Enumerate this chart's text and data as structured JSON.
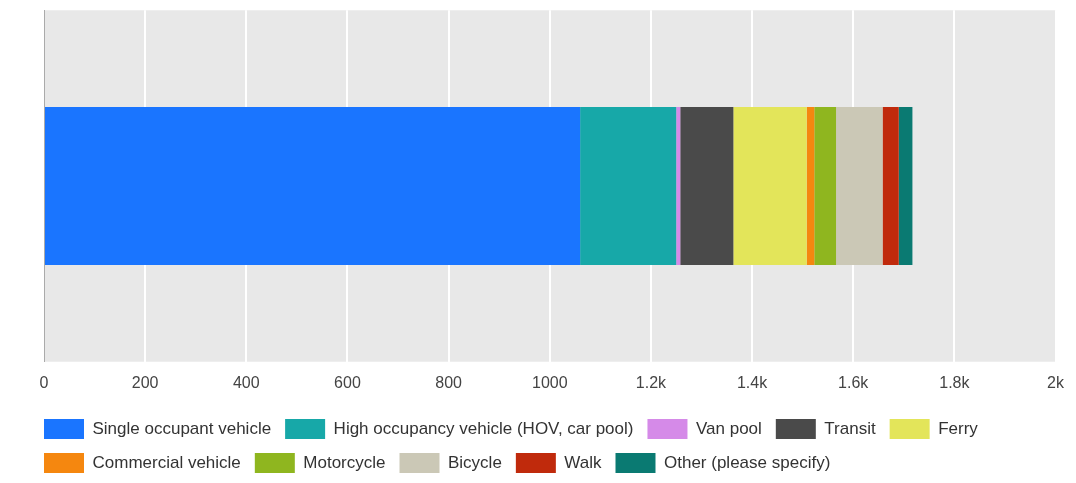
{
  "chart_data": {
    "type": "bar",
    "orientation": "horizontal",
    "stacked": true,
    "categories": [
      null
    ],
    "series": [
      {
        "name": "Single occupant vehicle",
        "color": "#1a75ff",
        "values": [
          1060
        ]
      },
      {
        "name": "High occupancy vehicle (HOV, car pool)",
        "color": "#17a8a8",
        "values": [
          190
        ]
      },
      {
        "name": "Van pool",
        "color": "#d58ae8",
        "values": [
          8
        ]
      },
      {
        "name": "Transit",
        "color": "#4a4a4a",
        "values": [
          105
        ]
      },
      {
        "name": "Ferry",
        "color": "#e3e55a",
        "values": [
          145
        ]
      },
      {
        "name": "Commercial vehicle",
        "color": "#f5870f",
        "values": [
          15
        ]
      },
      {
        "name": "Motorcycle",
        "color": "#8fb61f",
        "values": [
          43
        ]
      },
      {
        "name": "Bicycle",
        "color": "#cbc8b6",
        "values": [
          92
        ]
      },
      {
        "name": "Walk",
        "color": "#c02a0c",
        "values": [
          32
        ]
      },
      {
        "name": "Other (please specify)",
        "color": "#0a7a72",
        "values": [
          27
        ]
      }
    ],
    "xlim": [
      0,
      2000
    ],
    "xticks": [
      0,
      200,
      400,
      600,
      800,
      1000,
      {
        "value": 1200,
        "label": "1.2k"
      },
      {
        "value": 1400,
        "label": "1.4k"
      },
      {
        "value": 1600,
        "label": "1.6k"
      },
      {
        "value": 1800,
        "label": "1.8k"
      },
      {
        "value": 2000,
        "label": "2k"
      }
    ],
    "grid": "x",
    "legend": "bottom"
  }
}
